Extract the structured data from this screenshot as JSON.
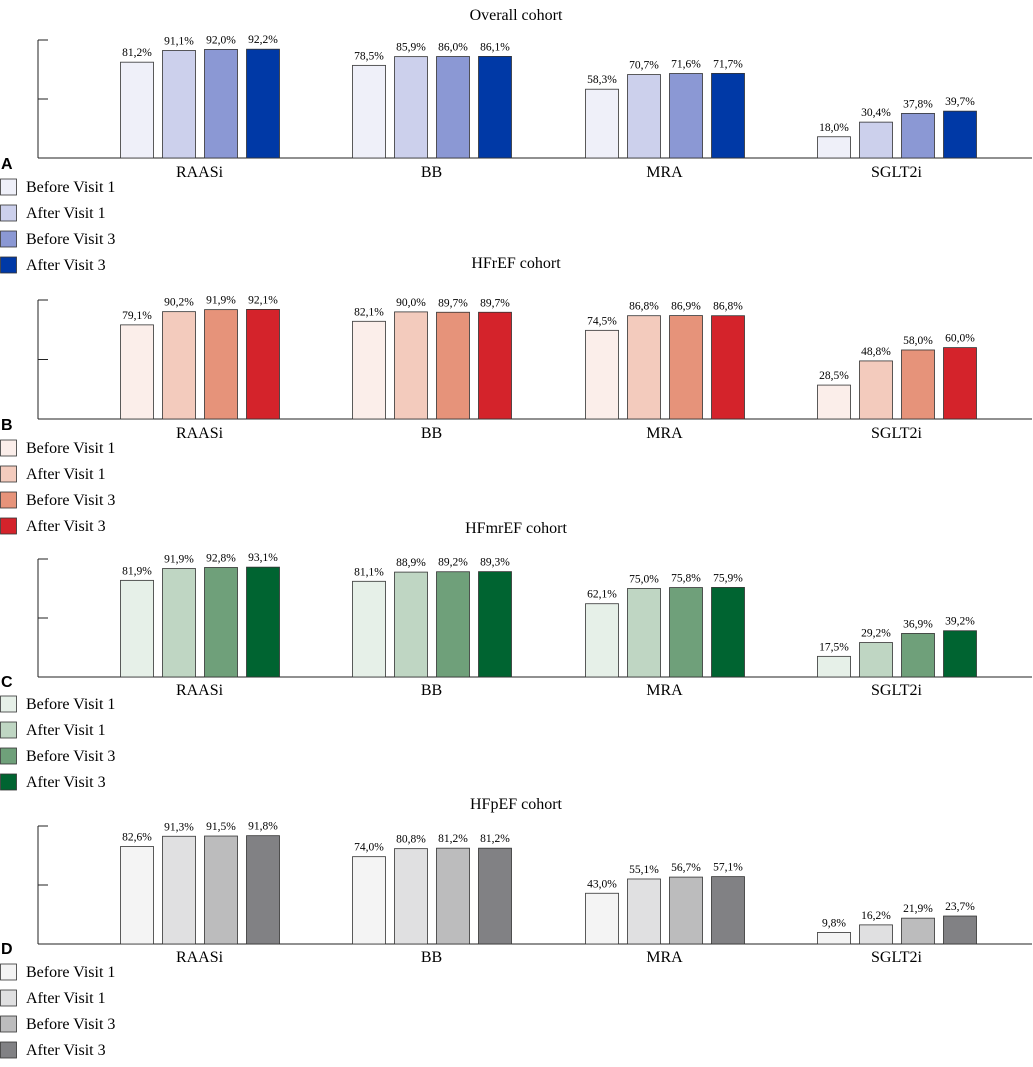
{
  "chart_data": [
    {
      "type": "bar",
      "panel_label": "A",
      "title": "Overall cohort",
      "categories": [
        "RAASi",
        "BB",
        "MRA",
        "SGLT2i"
      ],
      "ylim": [
        0,
        100
      ],
      "series": [
        {
          "name": "Before Visit 1",
          "color": "#eff0f9",
          "values": [
            81.2,
            78.5,
            58.3,
            18.0
          ],
          "labels": [
            "81,2%",
            "78,5%",
            "58,3%",
            "18,0%"
          ]
        },
        {
          "name": "After Visit 1",
          "color": "#ccd0ec",
          "values": [
            91.1,
            85.9,
            70.7,
            30.4
          ],
          "labels": [
            "91,1%",
            "85,9%",
            "70,7%",
            "30,4%"
          ]
        },
        {
          "name": "Before Visit 3",
          "color": "#8b98d4",
          "values": [
            92.0,
            86.0,
            71.6,
            37.8
          ],
          "labels": [
            "92,0%",
            "86,0%",
            "71,6%",
            "37,8%"
          ]
        },
        {
          "name": "After Visit 3",
          "color": "#0039a6",
          "values": [
            92.2,
            86.1,
            71.7,
            39.7
          ],
          "labels": [
            "92,2%",
            "86,1%",
            "71,7%",
            "39,7%"
          ]
        }
      ]
    },
    {
      "type": "bar",
      "panel_label": "B",
      "title": "HFrEF cohort",
      "categories": [
        "RAASi",
        "BB",
        "MRA",
        "SGLT2i"
      ],
      "ylim": [
        0,
        100
      ],
      "series": [
        {
          "name": "Before Visit 1",
          "color": "#fbeeea",
          "values": [
            79.1,
            82.1,
            74.5,
            28.5
          ],
          "labels": [
            "79,1%",
            "82,1%",
            "74,5%",
            "28,5%"
          ]
        },
        {
          "name": "After Visit 1",
          "color": "#f3cbbd",
          "values": [
            90.2,
            90.0,
            86.8,
            48.8
          ],
          "labels": [
            "90,2%",
            "90,0%",
            "86,8%",
            "48,8%"
          ]
        },
        {
          "name": "Before Visit 3",
          "color": "#e6937a",
          "values": [
            91.9,
            89.7,
            86.9,
            58.0
          ],
          "labels": [
            "91,9%",
            "89,7%",
            "86,9%",
            "58,0%"
          ]
        },
        {
          "name": "After Visit 3",
          "color": "#d4232b",
          "values": [
            92.1,
            89.7,
            86.8,
            60.0
          ],
          "labels": [
            "92,1%",
            "89,7%",
            "86,8%",
            "60,0%"
          ]
        }
      ]
    },
    {
      "type": "bar",
      "panel_label": "C",
      "title": "HFmrEF cohort",
      "categories": [
        "RAASi",
        "BB",
        "MRA",
        "SGLT2i"
      ],
      "ylim": [
        0,
        100
      ],
      "series": [
        {
          "name": "Before Visit 1",
          "color": "#e6f0e8",
          "values": [
            81.9,
            81.1,
            62.1,
            17.5
          ],
          "labels": [
            "81,9%",
            "81,1%",
            "62,1%",
            "17,5%"
          ]
        },
        {
          "name": "After Visit 1",
          "color": "#bfd6c3",
          "values": [
            91.9,
            88.9,
            75.0,
            29.2
          ],
          "labels": [
            "91,9%",
            "88,9%",
            "75,0%",
            "29,2%"
          ]
        },
        {
          "name": "Before Visit 3",
          "color": "#6fa07a",
          "values": [
            92.8,
            89.2,
            75.8,
            36.9
          ],
          "labels": [
            "92,8%",
            "89,2%",
            "75,8%",
            "36,9%"
          ]
        },
        {
          "name": "After Visit 3",
          "color": "#006431",
          "values": [
            93.1,
            89.3,
            75.9,
            39.2
          ],
          "labels": [
            "93,1%",
            "89,3%",
            "75,9%",
            "39,2%"
          ]
        }
      ]
    },
    {
      "type": "bar",
      "panel_label": "D",
      "title": "HFpEF cohort",
      "categories": [
        "RAASi",
        "BB",
        "MRA",
        "SGLT2i"
      ],
      "ylim": [
        0,
        100
      ],
      "series": [
        {
          "name": "Before Visit 1",
          "color": "#f4f4f4",
          "values": [
            82.6,
            74.0,
            43.0,
            9.8
          ],
          "labels": [
            "82,6%",
            "74,0%",
            "43,0%",
            "9,8%"
          ]
        },
        {
          "name": "After Visit 1",
          "color": "#e0e0e1",
          "values": [
            91.3,
            80.8,
            55.1,
            16.2
          ],
          "labels": [
            "91,3%",
            "80,8%",
            "55,1%",
            "16,2%"
          ]
        },
        {
          "name": "Before Visit 3",
          "color": "#bcbcbd",
          "values": [
            91.5,
            81.2,
            56.7,
            21.9
          ],
          "labels": [
            "91,5%",
            "81,2%",
            "56,7%",
            "21,9%"
          ]
        },
        {
          "name": "After Visit 3",
          "color": "#818184",
          "values": [
            91.8,
            81.2,
            57.1,
            23.7
          ],
          "labels": [
            "91,8%",
            "81,2%",
            "57,1%",
            "23,7%"
          ]
        }
      ]
    }
  ]
}
